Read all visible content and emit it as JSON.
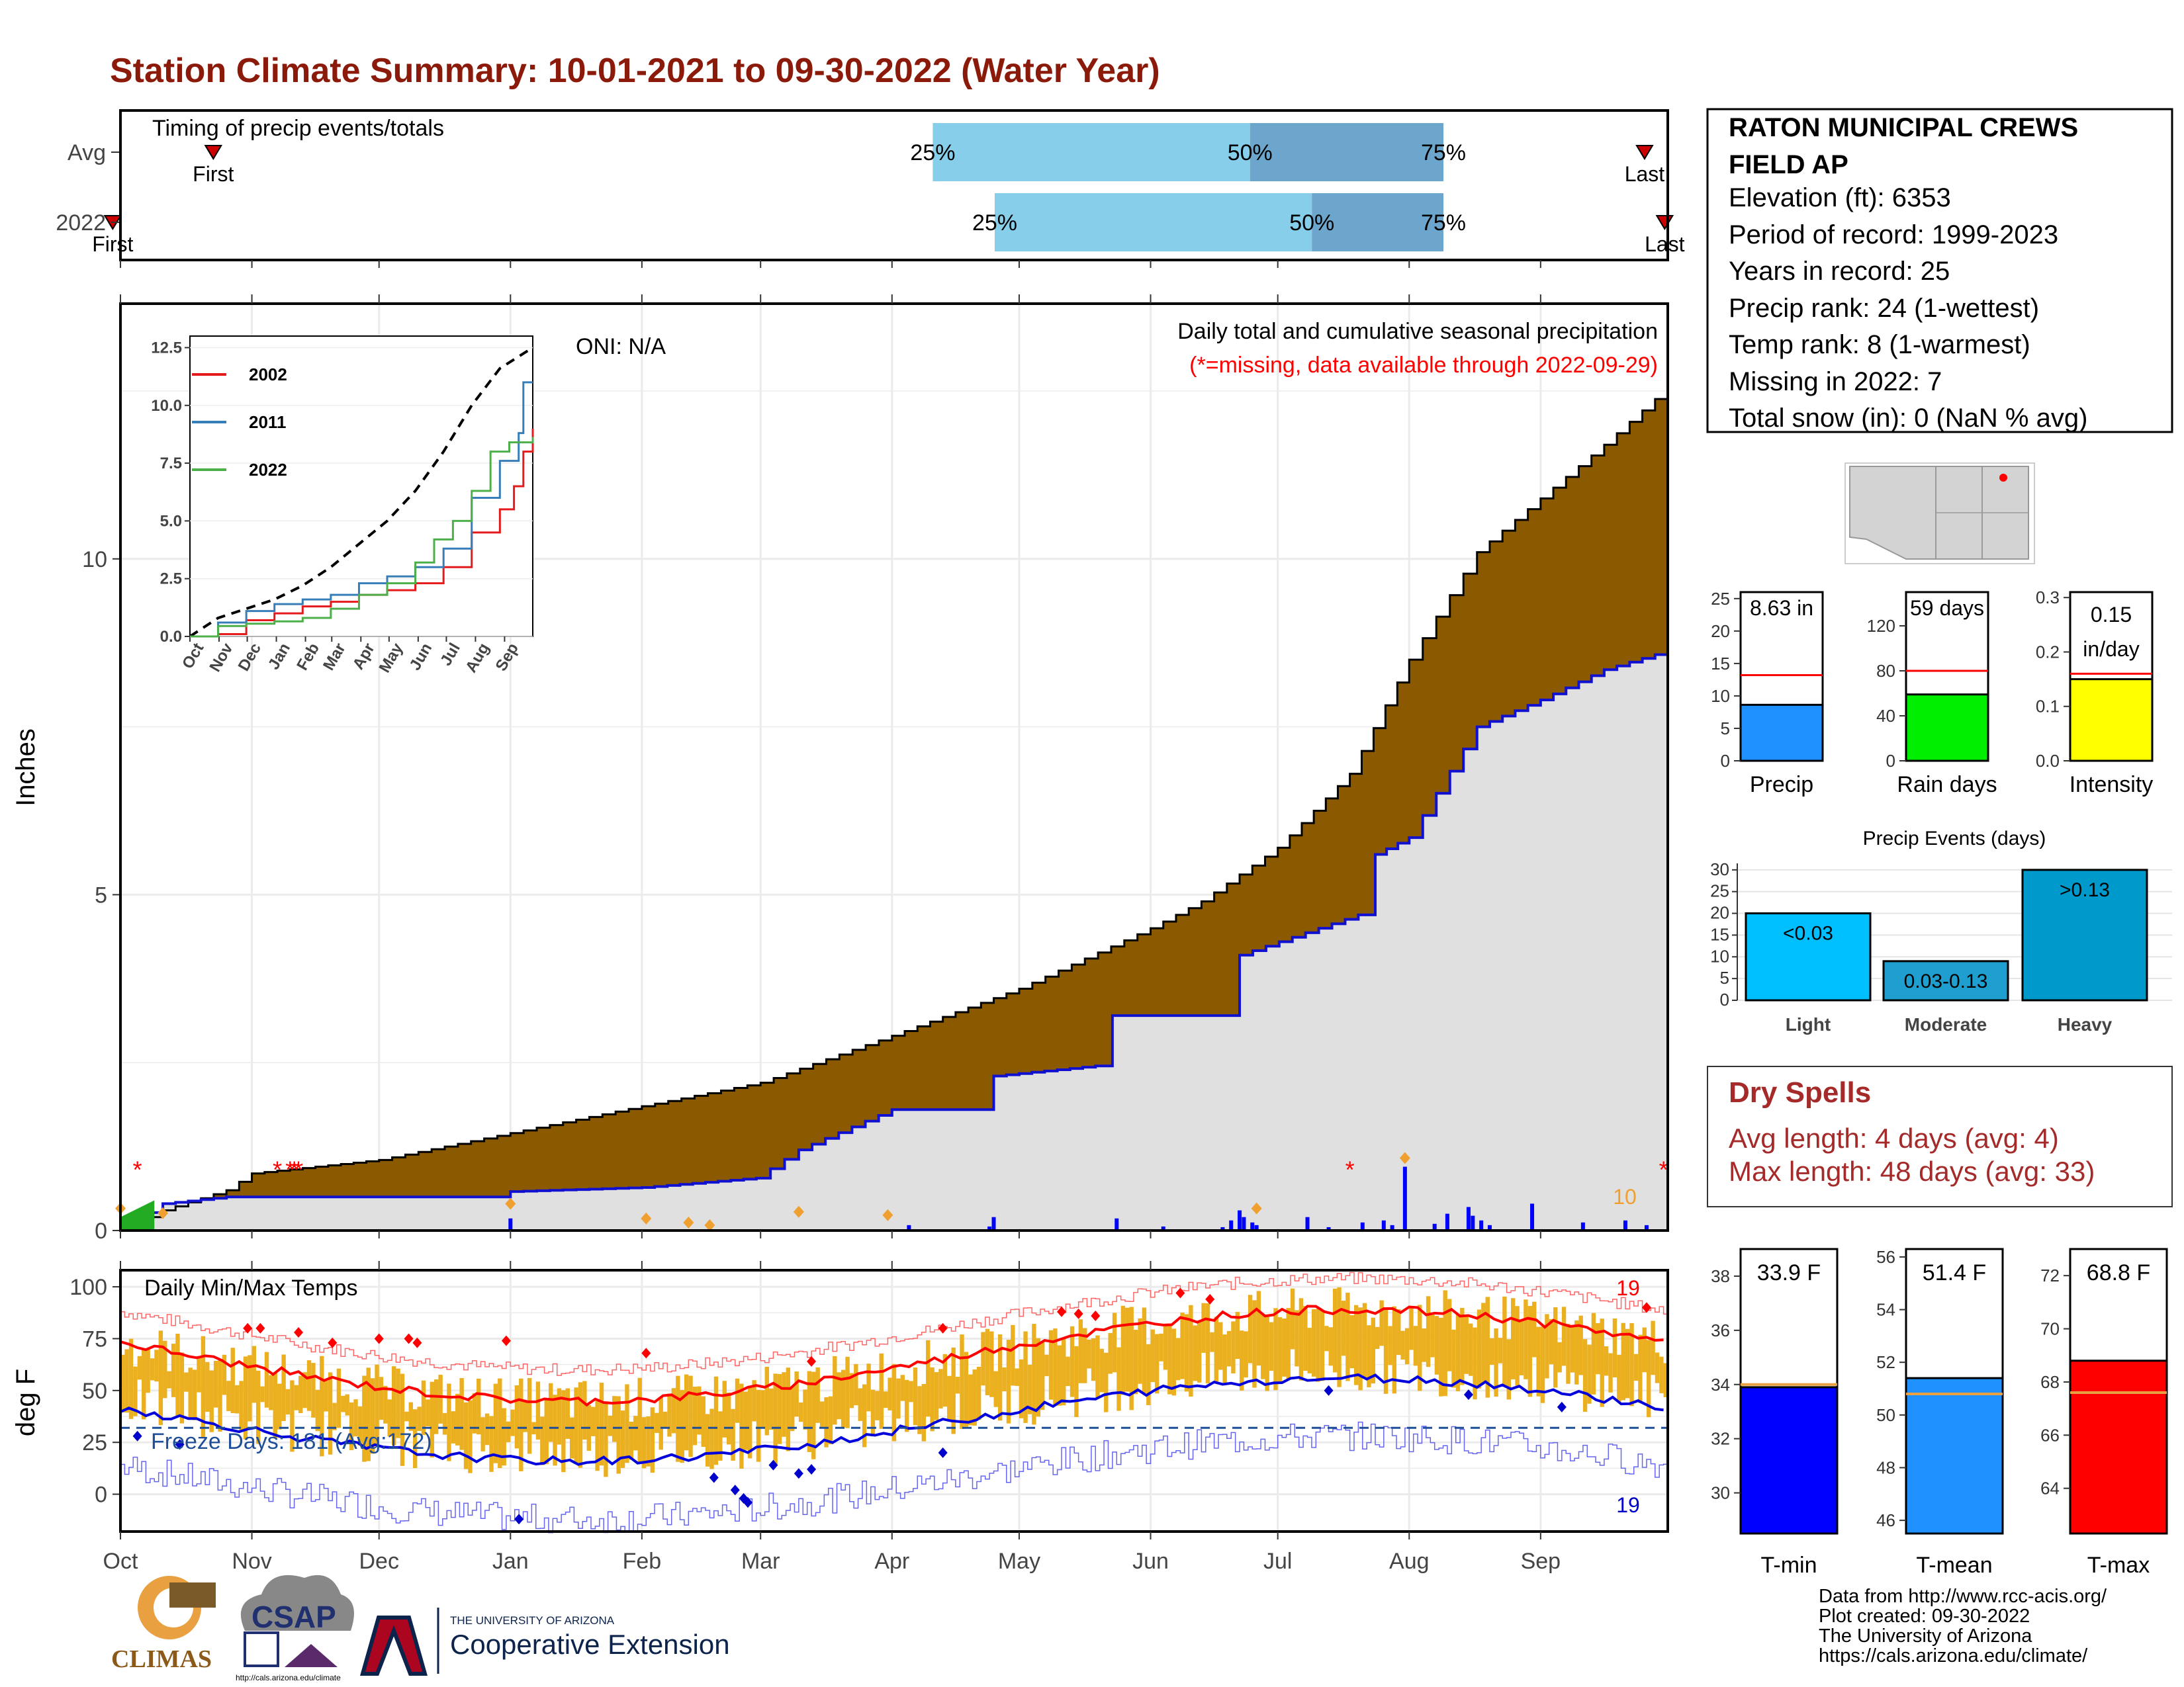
{
  "page_title": "Station Climate Summary: 10-01-2021 to 09-30-2022 (Water Year)",
  "colors": {
    "title": "#8B1A0A",
    "light_blue": "#87CEEB",
    "mid_blue": "#6CA6CD",
    "brown": "#8B5A00",
    "light_gray_fill": "#E0E0E0",
    "cum_line": "#1010D0",
    "temp_bar": "#EBB020",
    "tmax_line": "#FF0000",
    "tmin_line": "#0000DD",
    "freeze_line": "#1F4E99",
    "dry_spell_text": "#A52A2A"
  },
  "timing_panel": {
    "title": "Timing of precip events/totals",
    "rows": [
      "Avg",
      "2022"
    ],
    "first_label": "First",
    "last_label": "Last",
    "avg": {
      "first": 0.06,
      "p25": 0.525,
      "p50": 0.73,
      "p75": 0.855,
      "last": 0.985
    },
    "y2022": {
      "first": -0.005,
      "p25": 0.565,
      "p50": 0.77,
      "p75": 0.855,
      "last": 0.998
    },
    "pct_labels": [
      "25%",
      "50%",
      "75%"
    ]
  },
  "month_labels": [
    "Oct",
    "Nov",
    "Dec",
    "Jan",
    "Feb",
    "Mar",
    "Apr",
    "May",
    "Jun",
    "Jul",
    "Aug",
    "Sep"
  ],
  "month_starts_days": [
    0,
    31,
    61,
    92,
    123,
    151,
    182,
    212,
    243,
    273,
    304,
    335
  ],
  "precip_panel": {
    "ylabel": "Inches",
    "y_ticks": [
      0,
      5,
      10
    ],
    "ylim": [
      0,
      13.8
    ],
    "oni": "ONI: N/A",
    "subtitle": "Daily total and cumulative seasonal precipitation",
    "missing_note": "(*=missing, data available through 2022-09-29)",
    "orange_count": "10",
    "cumulative_avg": [
      [
        0,
        0
      ],
      [
        10,
        0.3
      ],
      [
        25,
        0.6
      ],
      [
        31,
        0.85
      ],
      [
        61,
        1.05
      ],
      [
        92,
        1.45
      ],
      [
        123,
        1.85
      ],
      [
        151,
        2.2
      ],
      [
        182,
        2.9
      ],
      [
        212,
        3.6
      ],
      [
        243,
        4.5
      ],
      [
        255,
        4.9
      ],
      [
        273,
        5.7
      ],
      [
        290,
        6.8
      ],
      [
        304,
        8.5
      ],
      [
        320,
        10.1
      ],
      [
        335,
        10.9
      ],
      [
        350,
        11.7
      ],
      [
        365,
        12.55
      ]
    ],
    "cumulative_2022": [
      [
        0,
        0
      ],
      [
        10,
        0.4
      ],
      [
        25,
        0.5
      ],
      [
        91,
        0.5
      ],
      [
        92,
        0.58
      ],
      [
        123,
        0.64
      ],
      [
        150,
        0.78
      ],
      [
        160,
        1.2
      ],
      [
        182,
        1.8
      ],
      [
        205,
        1.8
      ],
      [
        206,
        2.3
      ],
      [
        230,
        2.45
      ],
      [
        234,
        3.2
      ],
      [
        263,
        3.2
      ],
      [
        264,
        4.1
      ],
      [
        292,
        4.7
      ],
      [
        296,
        5.6
      ],
      [
        304,
        5.85
      ],
      [
        320,
        7.5
      ],
      [
        335,
        7.9
      ],
      [
        350,
        8.35
      ],
      [
        365,
        8.63
      ]
    ],
    "daily_bars": [
      [
        92,
        0.18
      ],
      [
        186,
        0.08
      ],
      [
        205,
        0.06
      ],
      [
        206,
        0.2
      ],
      [
        235,
        0.18
      ],
      [
        246,
        0.06
      ],
      [
        260,
        0.05
      ],
      [
        262,
        0.15
      ],
      [
        264,
        0.3
      ],
      [
        265,
        0.2
      ],
      [
        267,
        0.12
      ],
      [
        268,
        0.08
      ],
      [
        280,
        0.2
      ],
      [
        285,
        0.05
      ],
      [
        293,
        0.12
      ],
      [
        298,
        0.15
      ],
      [
        300,
        0.08
      ],
      [
        303,
        0.95
      ],
      [
        310,
        0.1
      ],
      [
        313,
        0.25
      ],
      [
        318,
        0.35
      ],
      [
        319,
        0.22
      ],
      [
        321,
        0.15
      ],
      [
        323,
        0.08
      ],
      [
        333,
        0.4
      ],
      [
        345,
        0.12
      ],
      [
        355,
        0.15
      ],
      [
        360,
        0.08
      ]
    ],
    "orange_diamonds": [
      [
        0,
        0.25
      ],
      [
        10,
        0.18
      ],
      [
        92,
        0.32
      ],
      [
        124,
        0.1
      ],
      [
        134,
        0.04
      ],
      [
        139,
        0.0
      ],
      [
        160,
        0.2
      ],
      [
        181,
        0.15
      ],
      [
        268,
        0.25
      ],
      [
        303,
        1.0
      ]
    ],
    "missing_days": [
      4,
      37,
      40,
      41,
      42,
      290,
      364
    ]
  },
  "inset": {
    "y_ticks": [
      "0.0",
      "2.5",
      "5.0",
      "7.5",
      "10.0",
      "12.5"
    ],
    "x_ticks": [
      "Oct",
      "Nov",
      "Dec",
      "Jan",
      "Feb",
      "Mar",
      "Apr",
      "May",
      "Jun",
      "Jul",
      "Aug",
      "Sep"
    ],
    "legend": [
      {
        "name": "2002",
        "color": "#E41A1C"
      },
      {
        "name": "2011",
        "color": "#377EB8"
      },
      {
        "name": "2022",
        "color": "#4DAF4A"
      }
    ],
    "avg": [
      [
        0,
        0
      ],
      [
        30,
        0.8
      ],
      [
        60,
        1.2
      ],
      [
        90,
        1.6
      ],
      [
        120,
        2.2
      ],
      [
        150,
        3.0
      ],
      [
        180,
        4.0
      ],
      [
        210,
        5.0
      ],
      [
        240,
        6.3
      ],
      [
        270,
        8.0
      ],
      [
        300,
        10.0
      ],
      [
        330,
        11.6
      ],
      [
        365,
        12.5
      ]
    ],
    "s2002": [
      [
        0,
        0
      ],
      [
        30,
        0.1
      ],
      [
        60,
        0.7
      ],
      [
        90,
        1.0
      ],
      [
        120,
        1.3
      ],
      [
        150,
        1.5
      ],
      [
        180,
        1.8
      ],
      [
        210,
        2.0
      ],
      [
        240,
        2.3
      ],
      [
        270,
        3.0
      ],
      [
        300,
        4.5
      ],
      [
        330,
        5.5
      ],
      [
        345,
        6.5
      ],
      [
        355,
        8.0
      ],
      [
        365,
        9.0
      ]
    ],
    "s2011": [
      [
        0,
        0
      ],
      [
        30,
        0.6
      ],
      [
        60,
        1.1
      ],
      [
        90,
        1.4
      ],
      [
        120,
        1.6
      ],
      [
        150,
        1.8
      ],
      [
        180,
        2.3
      ],
      [
        210,
        2.6
      ],
      [
        240,
        3.0
      ],
      [
        270,
        3.8
      ],
      [
        300,
        6.0
      ],
      [
        330,
        7.6
      ],
      [
        350,
        8.8
      ],
      [
        355,
        11.0
      ],
      [
        365,
        11.0
      ]
    ],
    "s2022": [
      [
        0,
        0
      ],
      [
        30,
        0.45
      ],
      [
        60,
        0.55
      ],
      [
        90,
        0.65
      ],
      [
        120,
        0.8
      ],
      [
        150,
        1.2
      ],
      [
        180,
        1.8
      ],
      [
        210,
        2.3
      ],
      [
        240,
        3.2
      ],
      [
        260,
        4.2
      ],
      [
        280,
        5.0
      ],
      [
        300,
        6.3
      ],
      [
        320,
        8.0
      ],
      [
        340,
        8.4
      ],
      [
        365,
        8.63
      ]
    ]
  },
  "temp_panel": {
    "ylabel": "deg F",
    "title": "Daily Min/Max Temps",
    "y_ticks": [
      0,
      25,
      50,
      75,
      100
    ],
    "ylim": [
      -18,
      108
    ],
    "freeze_text": "Freeze Days: 181 (Avg:172)",
    "freeze_line": 32,
    "max_count": "19",
    "min_count": "19"
  },
  "station_box": {
    "name_line1": "RATON MUNICIPAL CREWS",
    "name_line2": "FIELD AP",
    "lines": [
      "Elevation (ft): 6353",
      "Period of record: 1999-2023",
      "Years in record: 25",
      "Precip rank: 24 (1-wettest)",
      "Temp rank: 8 (1-warmest)",
      "Missing in 2022: 7",
      "Total snow (in): 0 (NaN % avg)"
    ]
  },
  "precip_bars": [
    {
      "label": "Precip",
      "value_text": "8.63 in",
      "value": 8.63,
      "avg": 13.2,
      "ymax": 26,
      "ticks": [
        "0",
        "5",
        "10",
        "15",
        "20",
        "25"
      ],
      "tick_vals": [
        0,
        5,
        10,
        15,
        20,
        25
      ],
      "color": "#1E90FF"
    },
    {
      "label": "Rain days",
      "value_text": "59 days",
      "value": 59,
      "avg": 80,
      "ymax": 150,
      "ticks": [
        "0",
        "40",
        "80",
        "120"
      ],
      "tick_vals": [
        0,
        40,
        80,
        120
      ],
      "color": "#00EE00"
    },
    {
      "label": "Intensity",
      "value_text": "0.15 in/day",
      "value_line1": "0.15",
      "value_line2": "in/day",
      "value": 0.15,
      "avg": 0.16,
      "ymax": 0.31,
      "ticks": [
        "0.0",
        "0.1",
        "0.2",
        "0.3"
      ],
      "tick_vals": [
        0,
        0.1,
        0.2,
        0.3
      ],
      "color": "#FFFF00"
    }
  ],
  "precip_events": {
    "title": "Precip Events (days)",
    "categories": [
      "Light",
      "Moderate",
      "Heavy"
    ],
    "bar_labels": [
      "<0.03",
      "0.03-0.13",
      ">0.13"
    ],
    "values": [
      20,
      9,
      30
    ],
    "colors": [
      "#00BFFF",
      "#1E9FD0",
      "#0099CC"
    ],
    "y_ticks": [
      0,
      5,
      10,
      15,
      20,
      25,
      30
    ]
  },
  "dry_spells": {
    "title": "Dry Spells",
    "avg_length": "Avg length: 4 days (avg: 4)",
    "max_length": "Max length: 48 days (avg: 33)"
  },
  "temp_bars": [
    {
      "label": "T-min",
      "value_text": "33.9 F",
      "value": 33.9,
      "avg": 34.0,
      "ymin": 28.5,
      "ymax": 39,
      "ticks": [
        "30",
        "32",
        "34",
        "36",
        "38"
      ],
      "tick_vals": [
        30,
        32,
        34,
        36,
        38
      ],
      "color": "#0000FF"
    },
    {
      "label": "T-mean",
      "value_text": "51.4 F",
      "value": 51.4,
      "avg": 50.8,
      "ymin": 45.5,
      "ymax": 56.3,
      "ticks": [
        "46",
        "48",
        "50",
        "52",
        "54",
        "56"
      ],
      "tick_vals": [
        46,
        48,
        50,
        52,
        54,
        56
      ],
      "color": "#1E90FF"
    },
    {
      "label": "T-max",
      "value_text": "68.8 F",
      "value": 68.8,
      "avg": 67.6,
      "ymin": 62.3,
      "ymax": 73,
      "ticks": [
        "64",
        "66",
        "68",
        "70",
        "72"
      ],
      "tick_vals": [
        64,
        66,
        68,
        70,
        72
      ],
      "color": "#FF0000"
    }
  ],
  "footer": {
    "data_from": "Data from http://www.rcc-acis.org/",
    "plot_created": "Plot created: 09-30-2022",
    "university": "The University of Arizona",
    "url": "https://cals.arizona.edu/climate/",
    "climas": "CLIMAS",
    "csap": "CSAP",
    "csap_url": "http://cals.arizona.edu/climate",
    "ua_small": "THE UNIVERSITY OF ARIZONA",
    "ua_ext": "Cooperative Extension"
  }
}
